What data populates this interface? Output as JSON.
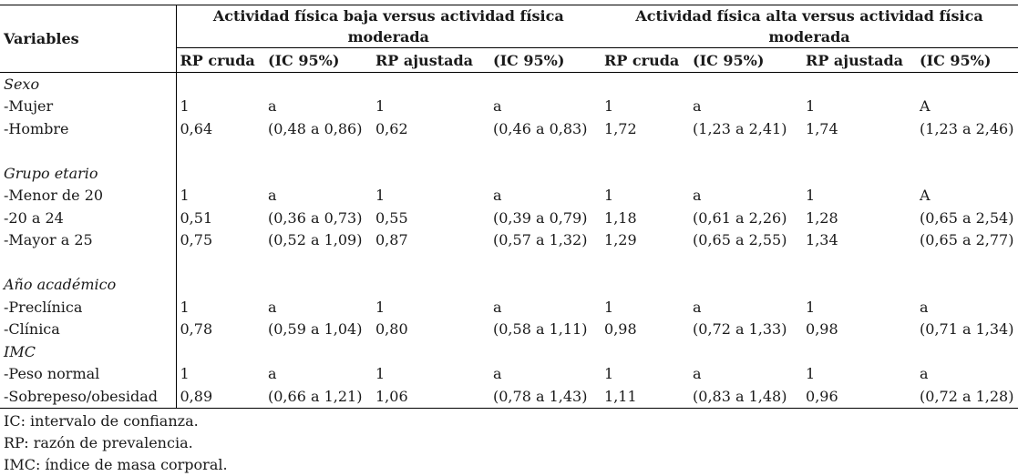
{
  "table": {
    "var_header": "Variables",
    "group_headers": [
      "Actividad física baja versus actividad física moderada",
      "Actividad física alta versus actividad física moderada"
    ],
    "sub_headers": [
      "RP cruda",
      "(IC 95%)",
      "RP ajustada",
      "(IC 95%)",
      "RP cruda",
      "(IC 95%)",
      "RP ajustada",
      "(IC 95%)"
    ],
    "rows": [
      {
        "label": "Sexo",
        "italic": true,
        "cells": [
          "",
          "",
          "",
          "",
          "",
          "",
          "",
          ""
        ]
      },
      {
        "label": "-Mujer",
        "italic": false,
        "cells": [
          "1",
          "a",
          "1",
          "a",
          "1",
          "a",
          "1",
          "A"
        ]
      },
      {
        "label": "-Hombre",
        "italic": false,
        "cells": [
          "0,64",
          "(0,48 a 0,86)",
          "0,62",
          "(0,46 a 0,83)",
          "1,72",
          "(1,23 a 2,41)",
          "1,74",
          "(1,23 a 2,46)"
        ]
      },
      {
        "label": "",
        "italic": false,
        "cells": [
          "",
          "",
          "",
          "",
          "",
          "",
          "",
          ""
        ]
      },
      {
        "label": "Grupo etario",
        "italic": true,
        "cells": [
          "",
          "",
          "",
          "",
          "",
          "",
          "",
          ""
        ]
      },
      {
        "label": "-Menor de 20",
        "italic": false,
        "cells": [
          "1",
          "a",
          "1",
          "a",
          "1",
          "a",
          "1",
          "A"
        ]
      },
      {
        "label": "-20 a 24",
        "italic": false,
        "cells": [
          "0,51",
          "(0,36 a 0,73)",
          "0,55",
          "(0,39 a 0,79)",
          "1,18",
          "(0,61 a 2,26)",
          "1,28",
          "(0,65 a 2,54)"
        ]
      },
      {
        "label": "-Mayor a 25",
        "italic": false,
        "cells": [
          "0,75",
          "(0,52 a 1,09)",
          "0,87",
          "(0,57 a 1,32)",
          "1,29",
          "(0,65 a 2,55)",
          "1,34",
          "(0,65 a 2,77)"
        ]
      },
      {
        "label": "",
        "italic": false,
        "cells": [
          "",
          "",
          "",
          "",
          "",
          "",
          "",
          ""
        ]
      },
      {
        "label": "Año académico",
        "italic": true,
        "cells": [
          "",
          "",
          "",
          "",
          "",
          "",
          "",
          ""
        ]
      },
      {
        "label": "-Preclínica",
        "italic": false,
        "cells": [
          "1",
          "a",
          "1",
          "a",
          "1",
          "a",
          "1",
          "a"
        ]
      },
      {
        "label": "-Clínica",
        "italic": false,
        "cells": [
          "0,78",
          "(0,59 a 1,04)",
          "0,80",
          "(0,58 a 1,11)",
          "0,98",
          "(0,72 a 1,33)",
          "0,98",
          "(0,71 a 1,34)"
        ]
      },
      {
        "label": "IMC",
        "italic": true,
        "cells": [
          "",
          "",
          "",
          "",
          "",
          "",
          "",
          ""
        ]
      },
      {
        "label": "-Peso normal",
        "italic": false,
        "cells": [
          "1",
          "a",
          "1",
          "a",
          "1",
          "a",
          "1",
          "a"
        ]
      },
      {
        "label": "-Sobrepeso/obesidad",
        "italic": false,
        "cells": [
          "0,89",
          "(0,66 a 1,21)",
          "1,06",
          "(0,78 a 1,43)",
          "1,11",
          "(0,83 a 1,48)",
          "0,96",
          "(0,72 a 1,28)"
        ]
      }
    ]
  },
  "notes": [
    "IC: intervalo de confianza.",
    "RP: razón de prevalencia.",
    "IMC: índice de masa corporal."
  ]
}
